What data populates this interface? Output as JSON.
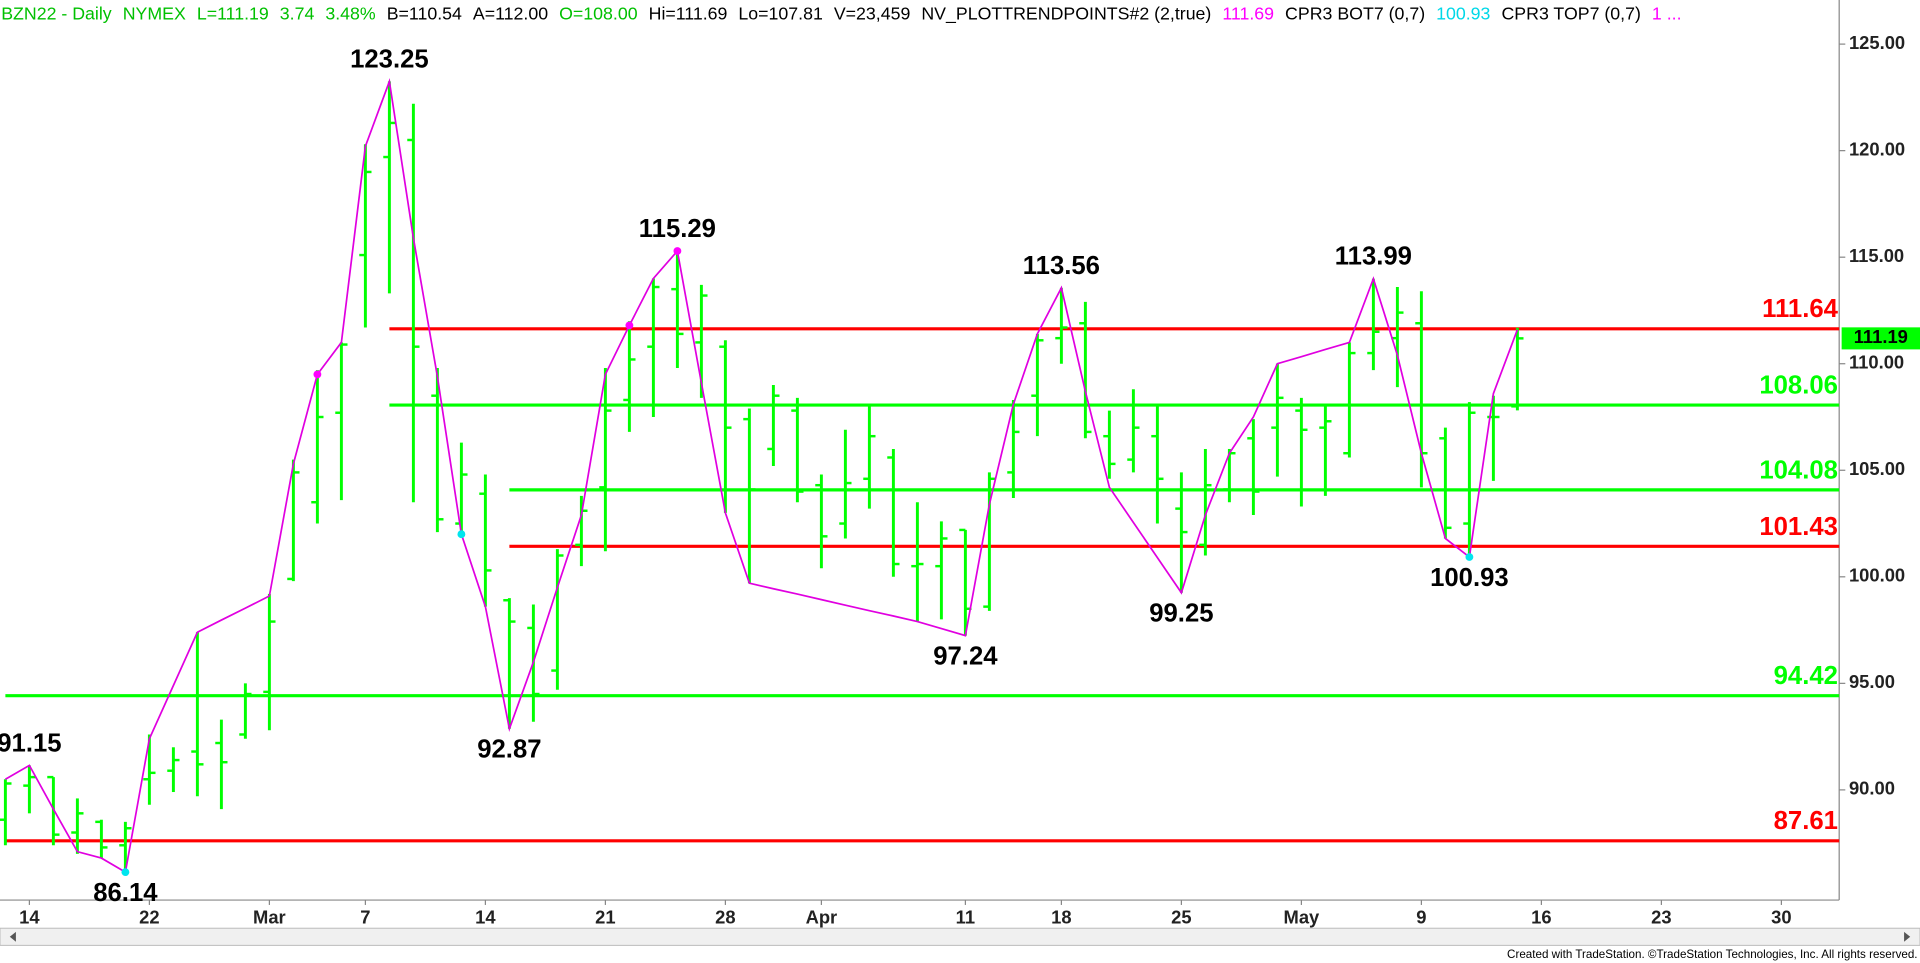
{
  "chart_data": {
    "type": "ohlc",
    "header": [
      {
        "text": "BZN22 - Daily",
        "color": "#00c000"
      },
      {
        "text": "NYMEX",
        "color": "#00c000"
      },
      {
        "text": "L=111.19",
        "color": "#00c000"
      },
      {
        "text": "3.74",
        "color": "#00c000"
      },
      {
        "text": "3.48%",
        "color": "#00c000"
      },
      {
        "text": "B=110.54",
        "color": "#000000"
      },
      {
        "text": "A=112.00",
        "color": "#000000"
      },
      {
        "text": "O=108.00",
        "color": "#00c000"
      },
      {
        "text": "Hi=111.69",
        "color": "#000000"
      },
      {
        "text": "Lo=107.81",
        "color": "#000000"
      },
      {
        "text": "V=23,459",
        "color": "#000000"
      },
      {
        "text": "NV_PLOTTRENDPOINTS#2 (2,true)",
        "color": "#000000"
      },
      {
        "text": "111.69",
        "color": "#ff00ff"
      },
      {
        "text": "CPR3 BOT7 (0,7)",
        "color": "#000000"
      },
      {
        "text": "100.93",
        "color": "#00d8e8"
      },
      {
        "text": "CPR3 TOP7 (0,7)",
        "color": "#000000"
      },
      {
        "text": "1 ...",
        "color": "#ff00ff"
      }
    ],
    "footer": "Created with TradeStation. ©TradeStation Technologies, Inc. All rights reserved.",
    "categories": [
      null,
      "14",
      null,
      null,
      null,
      null,
      "22",
      null,
      null,
      null,
      null,
      "Mar",
      null,
      null,
      null,
      "7",
      null,
      null,
      null,
      null,
      "14",
      null,
      null,
      null,
      null,
      "21",
      null,
      null,
      null,
      null,
      "28",
      null,
      null,
      null,
      "Apr",
      null,
      null,
      null,
      null,
      null,
      "11",
      null,
      null,
      null,
      "18",
      null,
      null,
      null,
      null,
      "25",
      null,
      null,
      null,
      null,
      "May",
      null,
      null,
      null,
      null,
      "9",
      null,
      null,
      null,
      null,
      "16",
      null,
      null,
      null,
      null,
      "23",
      null,
      null,
      null,
      null,
      "30",
      null,
      null
    ],
    "color": "#00ff00",
    "ohlc": [
      [
        88.6,
        90.5,
        87.4,
        90.3
      ],
      [
        90.2,
        91.15,
        88.9,
        90.6
      ],
      [
        90.6,
        90.6,
        87.4,
        87.9
      ],
      [
        88.0,
        89.6,
        87.0,
        88.9
      ],
      [
        88.5,
        88.6,
        86.8,
        87.3
      ],
      [
        87.4,
        88.5,
        86.14,
        88.2
      ],
      [
        90.5,
        92.6,
        89.3,
        90.8
      ],
      [
        90.9,
        92.0,
        89.9,
        91.4
      ],
      [
        91.8,
        97.4,
        89.7,
        91.2
      ],
      [
        92.2,
        93.3,
        89.1,
        91.3
      ],
      [
        92.6,
        95.0,
        92.4,
        94.5
      ],
      [
        94.6,
        99.2,
        92.8,
        97.9
      ],
      [
        99.9,
        105.5,
        99.8,
        104.9
      ],
      [
        103.5,
        109.7,
        102.5,
        107.5
      ],
      [
        107.7,
        111.0,
        103.6,
        110.9
      ],
      [
        115.1,
        120.3,
        111.7,
        119.0
      ],
      [
        119.7,
        123.25,
        113.3,
        121.3
      ],
      [
        120.5,
        122.2,
        103.5,
        110.8
      ],
      [
        108.5,
        109.8,
        102.1,
        102.7
      ],
      [
        102.5,
        106.3,
        102.0,
        104.8
      ],
      [
        103.9,
        104.8,
        98.6,
        100.3
      ],
      [
        98.9,
        99.0,
        92.87,
        97.9
      ],
      [
        97.6,
        98.7,
        93.2,
        94.5
      ],
      [
        95.6,
        101.3,
        94.7,
        101.0
      ],
      [
        101.5,
        103.8,
        100.5,
        103.1
      ],
      [
        104.2,
        109.8,
        101.2,
        107.8
      ],
      [
        108.3,
        112.0,
        106.8,
        110.2
      ],
      [
        110.8,
        114.0,
        107.5,
        113.6
      ],
      [
        113.5,
        115.29,
        109.8,
        111.4
      ],
      [
        111.0,
        113.7,
        108.4,
        113.2
      ],
      [
        110.8,
        111.1,
        103.0,
        107.0
      ],
      [
        107.4,
        107.9,
        99.7,
        104.1
      ],
      [
        106.0,
        109.0,
        105.2,
        108.5
      ],
      [
        107.8,
        108.4,
        103.5,
        104.0
      ],
      [
        104.3,
        104.8,
        100.4,
        101.9
      ],
      [
        102.5,
        106.9,
        101.8,
        104.4
      ],
      [
        104.6,
        108.1,
        103.2,
        106.6
      ],
      [
        105.6,
        106.0,
        100.0,
        100.6
      ],
      [
        100.5,
        103.5,
        97.9,
        100.6
      ],
      [
        100.5,
        102.6,
        98.0,
        101.8
      ],
      [
        102.2,
        102.2,
        97.24,
        98.5
      ],
      [
        98.6,
        104.9,
        98.4,
        104.6
      ],
      [
        104.9,
        108.3,
        103.7,
        106.8
      ],
      [
        108.5,
        111.4,
        106.6,
        111.1
      ],
      [
        111.2,
        113.56,
        110.0,
        111.7
      ],
      [
        111.9,
        112.9,
        106.5,
        106.8
      ],
      [
        106.6,
        107.8,
        104.6,
        105.3
      ],
      [
        105.5,
        108.8,
        104.9,
        107.0
      ],
      [
        106.6,
        108.0,
        102.5,
        104.6
      ],
      [
        103.2,
        104.9,
        99.25,
        102.1
      ],
      [
        101.5,
        106.0,
        101.0,
        104.3
      ],
      [
        104.1,
        106.0,
        103.5,
        105.8
      ],
      [
        106.5,
        107.4,
        102.9,
        104.0
      ],
      [
        107.0,
        110.0,
        104.7,
        108.4
      ],
      [
        107.8,
        108.4,
        103.3,
        106.9
      ],
      [
        107.0,
        108.0,
        103.8,
        107.3
      ],
      [
        105.8,
        111.0,
        105.6,
        110.5
      ],
      [
        110.5,
        113.99,
        109.7,
        111.5
      ],
      [
        111.2,
        113.6,
        108.9,
        112.4
      ],
      [
        111.9,
        113.4,
        104.2,
        105.8
      ],
      [
        106.5,
        107.0,
        101.8,
        102.3
      ],
      [
        102.5,
        108.2,
        100.93,
        107.7
      ],
      [
        107.5,
        108.5,
        104.5,
        107.5
      ],
      [
        108.0,
        111.69,
        107.81,
        111.19
      ],
      null,
      null,
      null,
      null,
      null,
      null,
      null,
      null,
      null,
      null,
      null,
      null,
      null
    ],
    "zigzag": {
      "color": "#e000e0",
      "values": [
        90.5,
        91.15,
        89.1,
        87.1,
        86.8,
        86.14,
        92.4,
        94.9,
        97.4,
        97.97,
        98.53,
        99.1,
        105.3,
        109.5,
        111.0,
        120.2,
        123.25,
        115.9,
        109.4,
        102.0,
        98.6,
        92.87,
        96.0,
        99.5,
        102.9,
        109.5,
        111.8,
        114.0,
        115.29,
        109.1,
        103.0,
        99.7,
        99.44,
        99.19,
        98.93,
        98.67,
        98.41,
        98.16,
        97.9,
        97.57,
        97.24,
        103.4,
        108.1,
        111.4,
        113.56,
        108.7,
        104.2,
        102.55,
        100.9,
        99.25,
        102.9,
        105.8,
        107.5,
        110.0,
        110.33,
        110.67,
        111.0,
        113.99,
        110.4,
        105.8,
        101.8,
        100.93,
        108.6,
        111.6,
        null,
        null,
        null,
        null,
        null,
        null,
        null,
        null,
        null,
        null,
        null,
        null,
        null
      ]
    },
    "markers": [
      {
        "color": "#ff00ff",
        "values": [
          null,
          null,
          null,
          null,
          null,
          null,
          null,
          null,
          null,
          null,
          null,
          null,
          null,
          109.5,
          null,
          null,
          null,
          null,
          null,
          null,
          null,
          null,
          null,
          null,
          null,
          null,
          111.8,
          null,
          115.29,
          null,
          null,
          null,
          null,
          null,
          null,
          null,
          null,
          null,
          null,
          null,
          null,
          null,
          null,
          null,
          null,
          null,
          null,
          null,
          null,
          null,
          null,
          null,
          null,
          null,
          null,
          null,
          null,
          null,
          null,
          null,
          null,
          null,
          null,
          null,
          null,
          null,
          null,
          null,
          null,
          null,
          null,
          null,
          null,
          null,
          null,
          null,
          null
        ]
      },
      {
        "color": "#00e5ee",
        "values": [
          null,
          null,
          null,
          null,
          null,
          86.14,
          null,
          null,
          null,
          null,
          null,
          null,
          null,
          null,
          null,
          null,
          null,
          null,
          null,
          102.0,
          null,
          null,
          null,
          null,
          null,
          null,
          null,
          null,
          null,
          null,
          null,
          null,
          null,
          null,
          null,
          null,
          null,
          null,
          null,
          null,
          null,
          null,
          null,
          null,
          null,
          null,
          null,
          null,
          null,
          null,
          null,
          null,
          null,
          null,
          null,
          null,
          null,
          null,
          null,
          null,
          null,
          100.93,
          null,
          null,
          null,
          null,
          null,
          null,
          null,
          null,
          null,
          null,
          null,
          null,
          null,
          null,
          null
        ]
      }
    ],
    "pivot_highs": [
      null,
      91.15,
      null,
      null,
      null,
      null,
      null,
      null,
      null,
      null,
      null,
      null,
      null,
      null,
      null,
      null,
      123.25,
      null,
      null,
      null,
      null,
      null,
      null,
      null,
      null,
      null,
      null,
      null,
      115.29,
      null,
      null,
      null,
      null,
      null,
      null,
      null,
      null,
      null,
      null,
      null,
      null,
      null,
      null,
      null,
      113.56,
      null,
      null,
      null,
      null,
      null,
      null,
      null,
      null,
      null,
      null,
      null,
      null,
      113.99,
      null,
      null,
      null,
      null,
      null,
      null,
      null,
      null,
      null,
      null,
      null,
      null,
      null,
      null,
      null,
      null,
      null,
      null,
      null
    ],
    "pivot_lows": [
      null,
      null,
      null,
      null,
      null,
      86.14,
      null,
      null,
      null,
      null,
      null,
      null,
      null,
      null,
      null,
      null,
      null,
      null,
      null,
      null,
      null,
      92.87,
      null,
      null,
      null,
      null,
      null,
      null,
      null,
      null,
      null,
      null,
      null,
      null,
      null,
      null,
      null,
      null,
      null,
      null,
      97.24,
      null,
      null,
      null,
      null,
      null,
      null,
      null,
      null,
      99.25,
      null,
      null,
      null,
      null,
      null,
      null,
      null,
      null,
      null,
      null,
      null,
      100.93,
      null,
      null,
      null,
      null,
      null,
      null,
      null,
      null,
      null,
      null,
      null,
      null,
      null,
      null,
      null
    ],
    "levels": [
      {
        "value": 111.64,
        "color": "#ff0000",
        "from": 16
      },
      {
        "value": 108.06,
        "color": "#00ff00",
        "from": 16
      },
      {
        "value": 104.08,
        "color": "#00ff00",
        "from": 21
      },
      {
        "value": 101.43,
        "color": "#ff0000",
        "from": 21
      },
      {
        "value": 94.42,
        "color": "#00ff00",
        "from": 0
      },
      {
        "value": 87.61,
        "color": "#ff0000",
        "from": 0
      }
    ],
    "last_price": 111.19,
    "last_price_color": "#00ff00",
    "ylim": [
      84.83,
      127.07
    ],
    "yticks": [
      {
        "value": 90,
        "label": "90.00"
      },
      {
        "value": 95,
        "label": "95.00"
      },
      {
        "value": 100,
        "label": "100.00"
      },
      {
        "value": 105,
        "label": "105.00"
      },
      {
        "value": 110,
        "label": "110.00"
      },
      {
        "value": 115,
        "label": "115.00"
      },
      {
        "value": 120,
        "label": "120.00"
      },
      {
        "value": 125,
        "label": "125.00"
      }
    ],
    "grid": false
  }
}
